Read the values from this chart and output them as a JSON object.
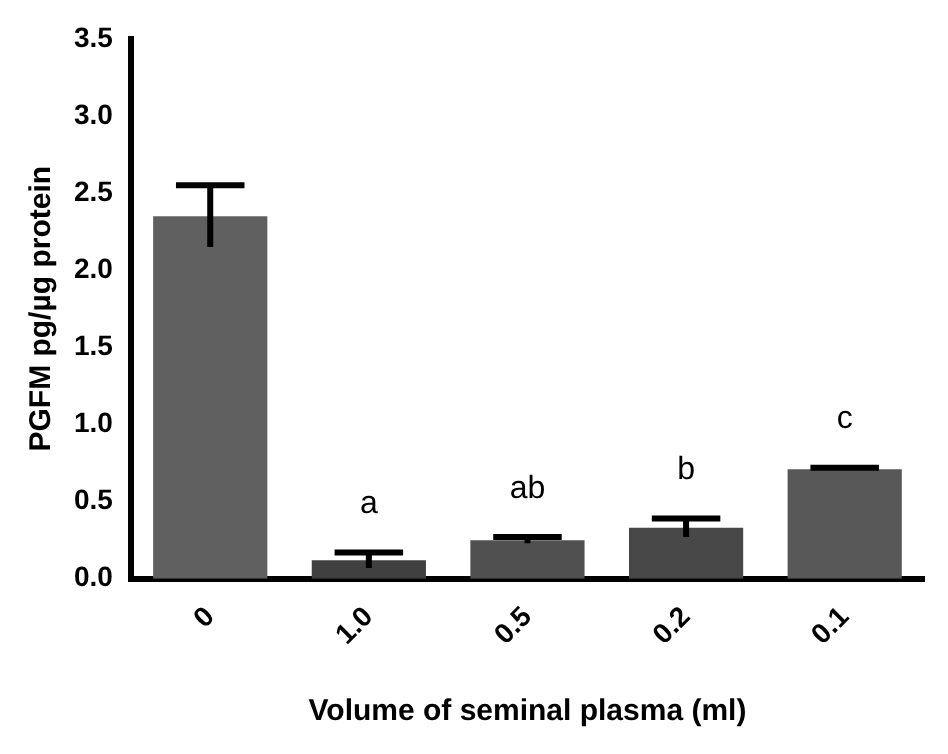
{
  "chart_data": {
    "type": "bar",
    "xlabel": "Volume of seminal plasma (ml)",
    "ylabel": "PGFM pg/µg protein",
    "categories": [
      "0",
      "1.0",
      "0.5",
      "0.2",
      "0.1"
    ],
    "values": [
      2.35,
      0.12,
      0.25,
      0.33,
      0.71
    ],
    "errors": [
      0.2,
      0.05,
      0.02,
      0.06,
      0.01
    ],
    "colors": [
      "#606060",
      "#404040",
      "#505050",
      "#484848",
      "#585858"
    ],
    "ylim": [
      0,
      3.5
    ],
    "yticks": [
      {
        "value": 0,
        "label": "0.0"
      },
      0.5,
      {
        "value": 1,
        "label": "1.0"
      },
      1.5,
      {
        "value": 2,
        "label": "2.0"
      },
      2.5,
      {
        "value": 3,
        "label": "3.0"
      },
      3.5
    ],
    "grid": false,
    "legend": false,
    "annotations": [
      {
        "text": "a",
        "x": "1.0",
        "y": 0.17
      },
      {
        "text": "ab",
        "x": "0.5",
        "y": 0.27
      },
      {
        "text": "b",
        "x": "0.2",
        "y": 0.39
      },
      {
        "text": "c",
        "x": "0.1",
        "y": 0.72
      }
    ]
  }
}
